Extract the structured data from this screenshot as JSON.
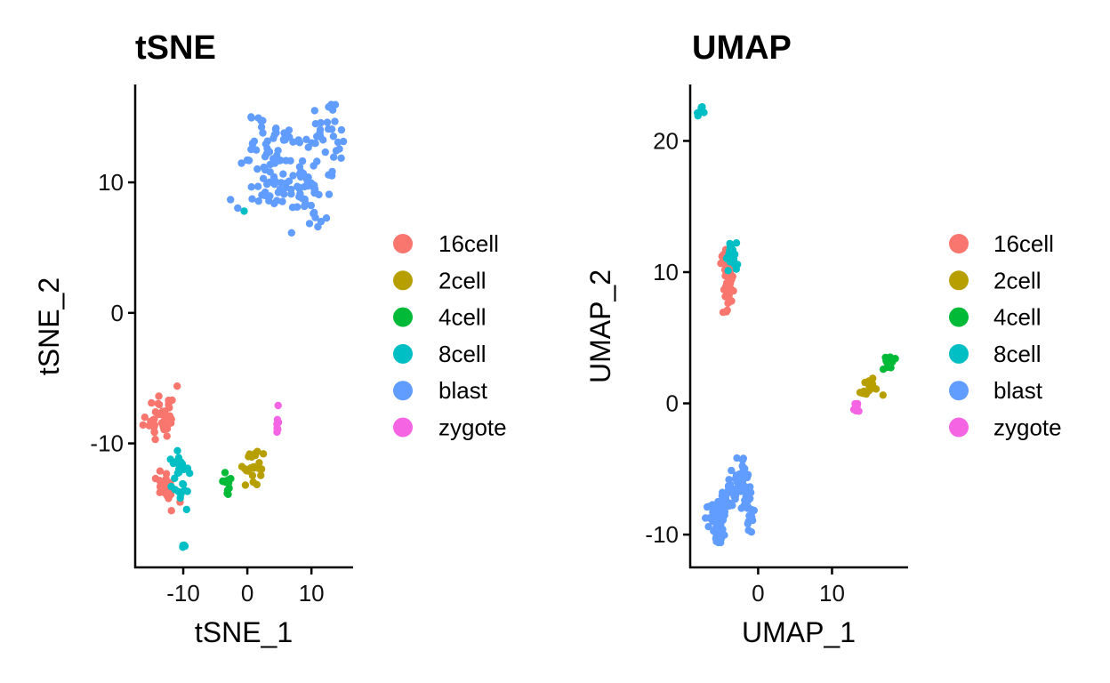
{
  "chart_data": [
    {
      "type": "scatter",
      "title": "tSNE",
      "xlabel": "tSNE_1",
      "ylabel": "tSNE_2",
      "xlim": [
        -17.5,
        16.5
      ],
      "ylim": [
        -19.5,
        17.5
      ],
      "xticks": [
        -10,
        0,
        10
      ],
      "xtick_labels": [
        "-10",
        "0",
        "10"
      ],
      "yticks": [
        -10,
        0,
        10
      ],
      "ytick_labels": [
        "-10",
        "0",
        "10"
      ],
      "grid": false,
      "legend_position": "right",
      "series": [
        {
          "name": "16cell",
          "color": "#F8766D",
          "clusters": [
            {
              "cx": -13.5,
              "cy": -7.8,
              "sx": 1.1,
              "sy": 1.1,
              "n": 40,
              "seed": 11
            },
            {
              "cx": -12.5,
              "cy": -13.3,
              "sx": 1.0,
              "sy": 0.6,
              "n": 20,
              "seed": 12
            }
          ],
          "points": [
            [
              -16.0,
              -8.0
            ],
            [
              -12.5,
              -14.0
            ],
            [
              -10.5,
              -14.5
            ]
          ]
        },
        {
          "name": "2cell",
          "color": "#B79F00",
          "clusters": [
            {
              "cx": 0.8,
              "cy": -11.8,
              "sx": 1.0,
              "sy": 0.8,
              "n": 20,
              "seed": 21
            }
          ],
          "points": [
            [
              2.5,
              -10.8
            ],
            [
              -0.3,
              -13.2
            ]
          ]
        },
        {
          "name": "4cell",
          "color": "#00BA38",
          "clusters": [
            {
              "cx": -3.3,
              "cy": -13.1,
              "sx": 0.5,
              "sy": 0.4,
              "n": 12,
              "seed": 31
            }
          ],
          "points": [
            [
              -3.0,
              -13.9
            ]
          ]
        },
        {
          "name": "8cell",
          "color": "#00BFC4",
          "clusters": [
            {
              "cx": -10.5,
              "cy": -12.5,
              "sx": 0.9,
              "sy": 1.1,
              "n": 30,
              "seed": 41
            },
            {
              "cx": -10.2,
              "cy": -17.9,
              "sx": 0.25,
              "sy": 0.1,
              "n": 5,
              "seed": 42
            }
          ],
          "points": [
            [
              -0.5,
              7.8
            ]
          ]
        },
        {
          "name": "blast",
          "color": "#619CFF",
          "clusters": [
            {
              "cx": 4.0,
              "cy": 12.0,
              "sx": 3.2,
              "sy": 1.6,
              "n": 70,
              "seed": 51
            },
            {
              "cx": 12.5,
              "cy": 13.5,
              "sx": 1.3,
              "sy": 1.5,
              "n": 30,
              "seed": 52
            },
            {
              "cx": 9.5,
              "cy": 9.0,
              "sx": 2.0,
              "sy": 1.2,
              "n": 35,
              "seed": 53
            },
            {
              "cx": 3.0,
              "cy": 9.5,
              "sx": 2.5,
              "sy": 0.8,
              "n": 20,
              "seed": 54
            }
          ],
          "points": [
            [
              10.5,
              15.5
            ],
            [
              11.5,
              7.0
            ],
            [
              6.5,
              14.0
            ]
          ]
        },
        {
          "name": "zygote",
          "color": "#F564E3",
          "clusters": [
            {
              "cx": 4.6,
              "cy": -8.5,
              "sx": 0.15,
              "sy": 0.35,
              "n": 8,
              "seed": 61
            }
          ],
          "points": [
            [
              4.8,
              -7.1
            ]
          ]
        }
      ]
    },
    {
      "type": "scatter",
      "title": "UMAP",
      "xlabel": "UMAP_1",
      "ylabel": "UMAP_2",
      "xlim": [
        -9.2,
        20.3
      ],
      "ylim": [
        -12.5,
        24.3
      ],
      "xticks": [
        0,
        10
      ],
      "xtick_labels": [
        "0",
        "10"
      ],
      "yticks": [
        -10,
        0,
        10,
        20
      ],
      "ytick_labels": [
        "-10",
        "0",
        "10",
        "20"
      ],
      "grid": false,
      "legend_position": "right",
      "series": [
        {
          "name": "16cell",
          "color": "#F8766D",
          "clusters": [
            {
              "cx": -4.0,
              "cy": 9.0,
              "sx": 0.35,
              "sy": 1.0,
              "n": 45,
              "seed": 71
            },
            {
              "cx": -4.5,
              "cy": 11.0,
              "sx": 0.4,
              "sy": 0.3,
              "n": 15,
              "seed": 72
            }
          ],
          "points": [
            [
              -3.6,
              7.8
            ]
          ]
        },
        {
          "name": "2cell",
          "color": "#B79F00",
          "clusters": [
            {
              "cx": 15.0,
              "cy": 1.2,
              "sx": 0.6,
              "sy": 0.35,
              "n": 20,
              "seed": 81
            }
          ],
          "points": [
            [
              14.0,
              0.8
            ]
          ]
        },
        {
          "name": "4cell",
          "color": "#00BA38",
          "clusters": [
            {
              "cx": 17.8,
              "cy": 3.0,
              "sx": 0.35,
              "sy": 0.25,
              "n": 12,
              "seed": 91
            }
          ],
          "points": []
        },
        {
          "name": "8cell",
          "color": "#00BFC4",
          "clusters": [
            {
              "cx": -3.6,
              "cy": 11.2,
              "sx": 0.4,
              "sy": 0.5,
              "n": 30,
              "seed": 101
            },
            {
              "cx": -7.9,
              "cy": 22.3,
              "sx": 0.2,
              "sy": 0.2,
              "n": 6,
              "seed": 102
            }
          ],
          "points": []
        },
        {
          "name": "blast",
          "color": "#619CFF",
          "clusters": [
            {
              "cx": -2.5,
              "cy": -5.8,
              "sx": 0.6,
              "sy": 0.8,
              "n": 45,
              "seed": 111
            },
            {
              "cx": -1.3,
              "cy": -7.8,
              "sx": 0.35,
              "sy": 0.9,
              "n": 25,
              "seed": 112
            },
            {
              "cx": -5.5,
              "cy": -8.5,
              "sx": 0.7,
              "sy": 0.6,
              "n": 40,
              "seed": 113
            },
            {
              "cx": -5.3,
              "cy": -10.0,
              "sx": 0.4,
              "sy": 0.4,
              "n": 20,
              "seed": 114
            },
            {
              "cx": -3.8,
              "cy": -7.0,
              "sx": 0.5,
              "sy": 0.5,
              "n": 15,
              "seed": 115
            }
          ],
          "points": [
            [
              -2.0,
              -4.2
            ],
            [
              -0.9,
              -9.8
            ]
          ]
        },
        {
          "name": "zygote",
          "color": "#F564E3",
          "clusters": [
            {
              "cx": 13.3,
              "cy": -0.3,
              "sx": 0.15,
              "sy": 0.25,
              "n": 8,
              "seed": 121
            }
          ],
          "points": []
        }
      ]
    }
  ]
}
